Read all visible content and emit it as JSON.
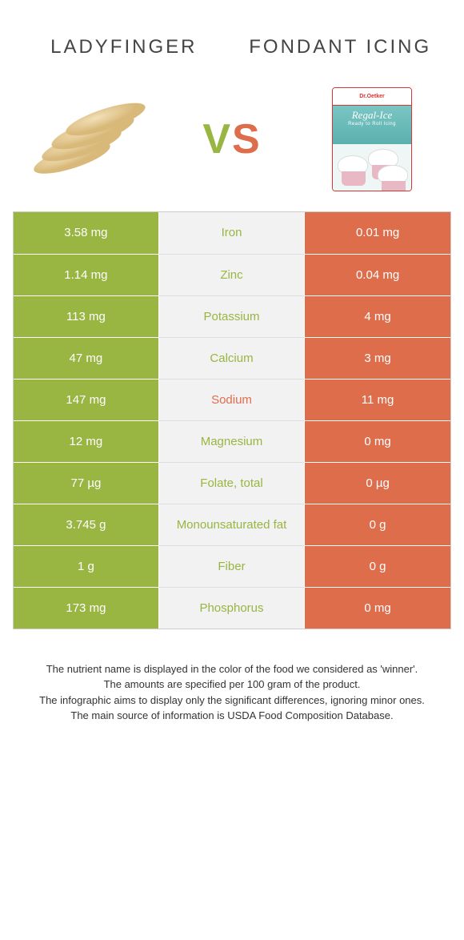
{
  "colors": {
    "left": "#99b542",
    "right": "#de6e4b",
    "mid_bg": "#f2f2f2"
  },
  "header": {
    "left_title": "Ladyfinger",
    "right_title": "Fondant icing",
    "vs_v": "V",
    "vs_s": "S"
  },
  "rows": [
    {
      "left": "3.58 mg",
      "name": "Iron",
      "right": "0.01 mg",
      "winner": "left"
    },
    {
      "left": "1.14 mg",
      "name": "Zinc",
      "right": "0.04 mg",
      "winner": "left"
    },
    {
      "left": "113 mg",
      "name": "Potassium",
      "right": "4 mg",
      "winner": "left"
    },
    {
      "left": "47 mg",
      "name": "Calcium",
      "right": "3 mg",
      "winner": "left"
    },
    {
      "left": "147 mg",
      "name": "Sodium",
      "right": "11 mg",
      "winner": "right"
    },
    {
      "left": "12 mg",
      "name": "Magnesium",
      "right": "0 mg",
      "winner": "left"
    },
    {
      "left": "77 µg",
      "name": "Folate, total",
      "right": "0 µg",
      "winner": "left"
    },
    {
      "left": "3.745 g",
      "name": "Monounsaturated fat",
      "right": "0 g",
      "winner": "left"
    },
    {
      "left": "1 g",
      "name": "Fiber",
      "right": "0 g",
      "winner": "left"
    },
    {
      "left": "173 mg",
      "name": "Phosphorus",
      "right": "0 mg",
      "winner": "left"
    }
  ],
  "footnotes": [
    "The nutrient name is displayed in the color of the food we considered as 'winner'.",
    "The amounts are specified per 100 gram of the product.",
    "The infographic aims to display only the significant differences, ignoring minor ones.",
    "The main source of information is USDA Food Composition Database."
  ],
  "fondant_box": {
    "brand": "Dr.Oetker",
    "name": "Regal-Ice",
    "tag": "Ready to Roll Icing"
  }
}
